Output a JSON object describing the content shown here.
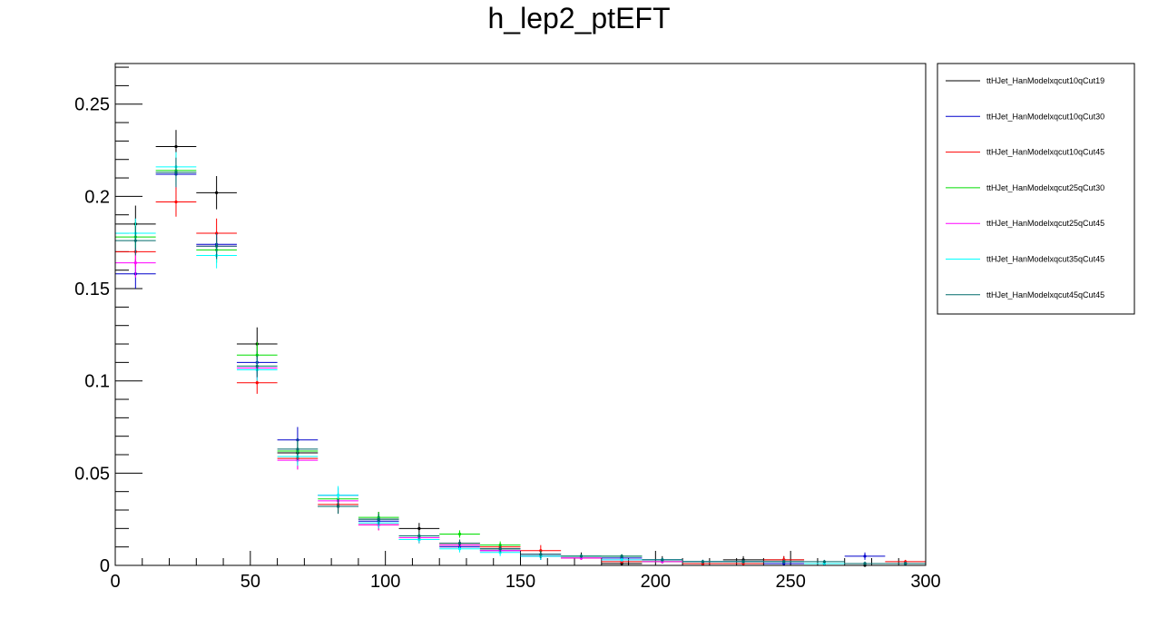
{
  "chart_data": {
    "type": "scatter",
    "title": "h_lep2_ptEFT",
    "xlabel": "",
    "ylabel": "",
    "xlim": [
      0,
      300
    ],
    "ylim": [
      0,
      0.272
    ],
    "x_ticks": [
      "0",
      "50",
      "100",
      "150",
      "200",
      "250",
      "300"
    ],
    "y_ticks": [
      "0",
      "0.05",
      "0.1",
      "0.15",
      "0.2",
      "0.25"
    ],
    "grid": false,
    "legend_position": "right",
    "bin_width": 15,
    "x": [
      7.5,
      22.5,
      37.5,
      52.5,
      67.5,
      82.5,
      97.5,
      112.5,
      127.5,
      142.5,
      157.5,
      172.5,
      187.5,
      202.5,
      217.5,
      232.5,
      247.5,
      262.5,
      277.5,
      292.5
    ],
    "series": [
      {
        "name": "ttHJet_HanModelxqcut10qCut19",
        "color": "#000000",
        "values": [
          0.185,
          0.227,
          0.202,
          0.12,
          0.061,
          0.032,
          0.025,
          0.02,
          0.011,
          0.009,
          0.005,
          0.005,
          0.001,
          0.003,
          0.001,
          0.003,
          0.003,
          0.001,
          0.0,
          0.001
        ],
        "errors": [
          0.01,
          0.009,
          0.009,
          0.009,
          0.006,
          0.004,
          0.004,
          0.003,
          0.003,
          0.002,
          0.002,
          0.002,
          0.001,
          0.002,
          0.001,
          0.002,
          0.002,
          0.001,
          0.001,
          0.001
        ]
      },
      {
        "name": "ttHJet_HanModelxqcut10qCut30",
        "color": "#0000cc",
        "values": [
          0.158,
          0.212,
          0.174,
          0.11,
          0.068,
          0.038,
          0.024,
          0.014,
          0.01,
          0.008,
          0.005,
          0.004,
          0.004,
          0.003,
          0.002,
          0.002,
          0.001,
          0.001,
          0.005,
          0.001
        ],
        "errors": [
          0.008,
          0.008,
          0.007,
          0.006,
          0.007,
          0.004,
          0.003,
          0.002,
          0.002,
          0.002,
          0.002,
          0.001,
          0.001,
          0.001,
          0.001,
          0.001,
          0.001,
          0.001,
          0.002,
          0.001
        ]
      },
      {
        "name": "ttHJet_HanModelxqcut10qCut45",
        "color": "#ff0000",
        "values": [
          0.17,
          0.197,
          0.18,
          0.099,
          0.058,
          0.033,
          0.022,
          0.015,
          0.012,
          0.01,
          0.008,
          0.004,
          0.002,
          0.002,
          0.001,
          0.001,
          0.003,
          0.001,
          0.001,
          0.002
        ],
        "errors": [
          0.008,
          0.008,
          0.008,
          0.006,
          0.006,
          0.004,
          0.003,
          0.003,
          0.002,
          0.002,
          0.003,
          0.001,
          0.001,
          0.001,
          0.001,
          0.001,
          0.002,
          0.001,
          0.001,
          0.001
        ]
      },
      {
        "name": "ttHJet_HanModelxqcut25qCut30",
        "color": "#00dd00",
        "values": [
          0.178,
          0.214,
          0.171,
          0.114,
          0.062,
          0.036,
          0.026,
          0.016,
          0.017,
          0.011,
          0.006,
          0.005,
          0.005,
          0.002,
          0.002,
          0.002,
          0.002,
          0.001,
          0.001,
          0.001
        ],
        "errors": [
          0.008,
          0.008,
          0.007,
          0.007,
          0.006,
          0.004,
          0.003,
          0.002,
          0.002,
          0.002,
          0.002,
          0.001,
          0.001,
          0.001,
          0.001,
          0.001,
          0.001,
          0.001,
          0.001,
          0.001
        ]
      },
      {
        "name": "ttHJet_HanModelxqcut25qCut45",
        "color": "#ff00ff",
        "values": [
          0.164,
          0.213,
          0.173,
          0.107,
          0.057,
          0.035,
          0.022,
          0.015,
          0.011,
          0.008,
          0.006,
          0.004,
          0.003,
          0.002,
          0.002,
          0.002,
          0.002,
          0.001,
          0.001,
          0.001
        ],
        "errors": [
          0.008,
          0.008,
          0.007,
          0.006,
          0.005,
          0.004,
          0.003,
          0.002,
          0.002,
          0.002,
          0.001,
          0.001,
          0.001,
          0.001,
          0.001,
          0.001,
          0.001,
          0.001,
          0.001,
          0.001
        ]
      },
      {
        "name": "ttHJet_HanModelxqcut35qCut45",
        "color": "#00ffff",
        "values": [
          0.18,
          0.216,
          0.168,
          0.106,
          0.059,
          0.038,
          0.023,
          0.014,
          0.009,
          0.007,
          0.005,
          0.005,
          0.003,
          0.003,
          0.002,
          0.002,
          0.002,
          0.001,
          0.001,
          0.001
        ],
        "errors": [
          0.008,
          0.008,
          0.007,
          0.006,
          0.005,
          0.005,
          0.003,
          0.002,
          0.002,
          0.002,
          0.002,
          0.001,
          0.001,
          0.001,
          0.001,
          0.001,
          0.001,
          0.001,
          0.001,
          0.001
        ]
      },
      {
        "name": "ttHJet_HanModelxqcut45qCut45",
        "color": "#006b6b",
        "values": [
          0.176,
          0.213,
          0.173,
          0.108,
          0.063,
          0.032,
          0.025,
          0.016,
          0.012,
          0.009,
          0.006,
          0.005,
          0.005,
          0.003,
          0.002,
          0.002,
          0.002,
          0.002,
          0.001,
          0.001
        ],
        "errors": [
          0.008,
          0.008,
          0.007,
          0.006,
          0.006,
          0.004,
          0.003,
          0.002,
          0.002,
          0.002,
          0.002,
          0.001,
          0.001,
          0.001,
          0.001,
          0.001,
          0.001,
          0.001,
          0.001,
          0.001
        ]
      }
    ]
  }
}
